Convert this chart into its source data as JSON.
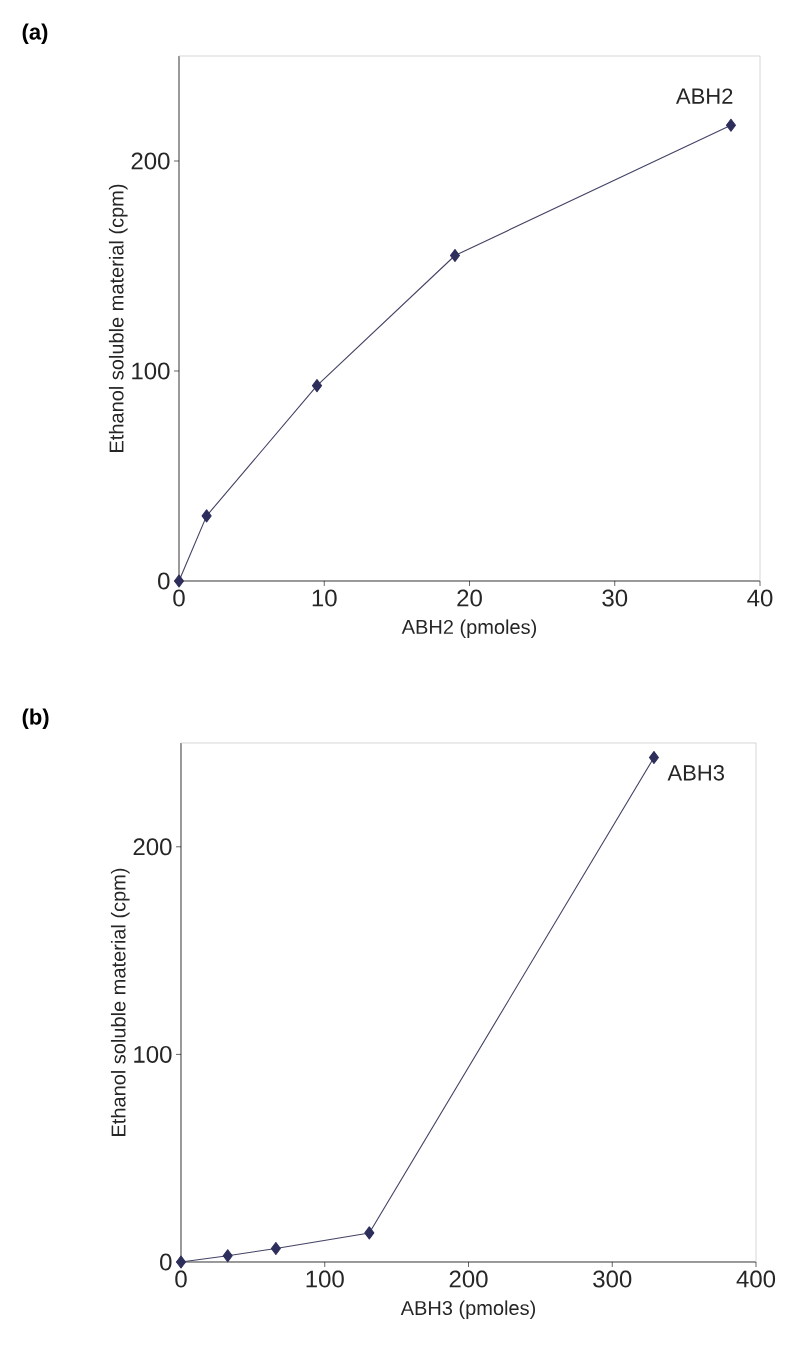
{
  "chart_data": [
    {
      "type": "line",
      "title": "(a)",
      "xlabel": "ABH2 (pmoles)",
      "ylabel": "Ethanol soluble material (cpm)",
      "x": [
        0,
        1.9,
        9.5,
        19,
        38
      ],
      "values": [
        0,
        31,
        93,
        155,
        217
      ],
      "color": "#2e2e5c",
      "marker": "diamond",
      "line_style": "solid",
      "grid": false,
      "xlim": [
        0,
        40
      ],
      "ylim": [
        0,
        250
      ],
      "xticks": [
        0,
        10,
        20,
        30,
        40
      ],
      "yticks": [
        0,
        100,
        200
      ],
      "annotations": [
        {
          "text": "ABH2",
          "x": 38,
          "y": 217
        }
      ]
    },
    {
      "type": "line",
      "title": "(b)",
      "xlabel": "ABH3 (pmoles)",
      "ylabel": "Ethanol soluble material (cpm)",
      "x": [
        0,
        32.5,
        66,
        131,
        329
      ],
      "values": [
        0,
        3,
        6.5,
        14,
        243
      ],
      "color": "#2e2e5c",
      "marker": "diamond",
      "line_style": "solid",
      "grid": false,
      "xlim": [
        0,
        400
      ],
      "ylim": [
        0,
        250
      ],
      "xticks": [
        0,
        100,
        200,
        300,
        400
      ],
      "yticks": [
        0,
        100,
        200
      ],
      "annotations": [
        {
          "text": "ABH3",
          "x": 329,
          "y": 243
        }
      ]
    }
  ]
}
